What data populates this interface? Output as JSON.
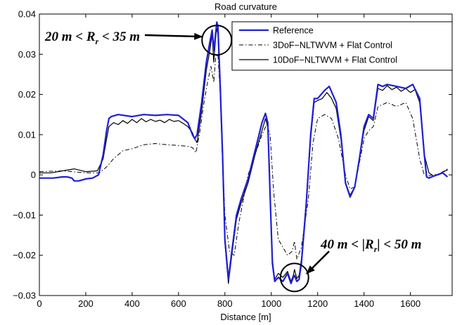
{
  "chart_data": {
    "type": "line",
    "title": "Road curvature",
    "xlabel": "Distance [m]",
    "ylabel": "",
    "xlim": [
      0,
      1780
    ],
    "ylim": [
      -0.03,
      0.04
    ],
    "x_ticks": [
      0,
      200,
      400,
      600,
      800,
      1000,
      1200,
      1400,
      1600
    ],
    "x_tick_labels": [
      "0",
      "200",
      "400",
      "600",
      "800",
      "1000",
      "1200",
      "1400",
      "1600"
    ],
    "y_ticks": [
      -0.03,
      -0.02,
      -0.01,
      0,
      0.01,
      0.02,
      0.03,
      0.04
    ],
    "y_tick_labels": [
      "−0.03",
      "−0.02",
      "−0.01",
      "0",
      "0.01",
      "0.02",
      "0.03",
      "0.04"
    ],
    "grid": false,
    "legend_position": "top-right",
    "series": [
      {
        "name": "Reference",
        "color": "#1f1fd6",
        "style": "solid",
        "x": [
          0,
          60,
          100,
          120,
          140,
          150,
          170,
          200,
          230,
          255,
          275,
          290,
          300,
          310,
          340,
          400,
          450,
          500,
          550,
          600,
          640,
          660,
          670,
          680,
          700,
          720,
          735,
          745,
          752,
          760,
          765,
          770,
          780,
          790,
          800,
          815,
          830,
          850,
          870,
          900,
          930,
          960,
          975,
          985,
          995,
          1005,
          1015,
          1030,
          1050,
          1070,
          1085,
          1095,
          1100,
          1110,
          1120,
          1130,
          1150,
          1170,
          1185,
          1200,
          1230,
          1250,
          1280,
          1300,
          1320,
          1340,
          1360,
          1380,
          1400,
          1420,
          1440,
          1460,
          1480,
          1500,
          1540,
          1580,
          1610,
          1640,
          1660,
          1670,
          1680,
          1700,
          1740,
          1760
        ],
        "y": [
          -0.0008,
          -0.0008,
          -0.0005,
          -0.0005,
          -0.0008,
          -0.0015,
          -0.0015,
          -0.001,
          -0.0008,
          0.0,
          0.005,
          0.011,
          0.014,
          0.0145,
          0.015,
          0.0145,
          0.015,
          0.0148,
          0.015,
          0.0148,
          0.013,
          0.01,
          0.009,
          0.01,
          0.018,
          0.028,
          0.033,
          0.036,
          0.031,
          0.035,
          0.038,
          0.037,
          0.022,
          0.005,
          -0.016,
          -0.026,
          -0.019,
          -0.01,
          -0.006,
          -0.001,
          0.006,
          0.013,
          0.0153,
          0.013,
          -0.005,
          -0.022,
          -0.0265,
          -0.0255,
          -0.0265,
          -0.0245,
          -0.027,
          -0.0255,
          -0.025,
          -0.0265,
          -0.026,
          -0.022,
          -0.008,
          0.01,
          0.019,
          0.019,
          0.021,
          0.022,
          0.018,
          0.01,
          -0.002,
          -0.0055,
          -0.003,
          0.004,
          0.012,
          0.015,
          0.014,
          0.0225,
          0.022,
          0.0225,
          0.022,
          0.0215,
          0.0225,
          0.019,
          0.005,
          -0.0005,
          -0.0008,
          -0.0003,
          0.0005,
          -0.0005
        ]
      },
      {
        "name": "3DoF−NLTWVM + Flat Control",
        "color": "#000000",
        "style": "dashdot",
        "x": [
          0,
          100,
          200,
          260,
          290,
          320,
          360,
          400,
          450,
          500,
          550,
          600,
          640,
          660,
          675,
          690,
          710,
          725,
          740,
          752,
          760,
          770,
          780,
          790,
          800,
          820,
          840,
          860,
          880,
          900,
          930,
          960,
          980,
          995,
          1010,
          1030,
          1050,
          1070,
          1090,
          1100,
          1110,
          1130,
          1160,
          1180,
          1200,
          1230,
          1260,
          1290,
          1320,
          1340,
          1360,
          1380,
          1400,
          1420,
          1440,
          1460,
          1500,
          1540,
          1580,
          1610,
          1640,
          1660,
          1680,
          1700,
          1740,
          1760
        ],
        "y": [
          0.0008,
          0.001,
          0.0005,
          0.0005,
          0.002,
          0.004,
          0.006,
          0.0065,
          0.0075,
          0.0078,
          0.0075,
          0.0073,
          0.0071,
          0.0068,
          0.0055,
          0.01,
          0.018,
          0.023,
          0.027,
          0.023,
          0.029,
          0.03,
          0.02,
          0.006,
          -0.01,
          -0.019,
          -0.02,
          -0.012,
          -0.006,
          0.0,
          0.005,
          0.01,
          0.0125,
          0.01,
          -0.004,
          -0.016,
          -0.018,
          -0.02,
          -0.019,
          -0.0165,
          -0.021,
          -0.018,
          -0.006,
          0.008,
          0.014,
          0.015,
          0.014,
          0.009,
          0.0,
          -0.0035,
          -0.003,
          0.003,
          0.009,
          0.011,
          0.012,
          0.017,
          0.018,
          0.017,
          0.018,
          0.014,
          0.004,
          0.0,
          -0.0002,
          0.0,
          0.0005,
          0.0015
        ]
      },
      {
        "name": "10DoF−NLTWVM + Flat Control",
        "color": "#000000",
        "style": "solid",
        "x": [
          0,
          50,
          100,
          150,
          200,
          250,
          275,
          290,
          300,
          320,
          340,
          360,
          380,
          400,
          420,
          440,
          460,
          480,
          500,
          520,
          540,
          560,
          580,
          600,
          620,
          640,
          660,
          670,
          680,
          700,
          720,
          735,
          745,
          752,
          760,
          765,
          770,
          780,
          790,
          800,
          815,
          830,
          850,
          870,
          900,
          930,
          960,
          975,
          985,
          995,
          1005,
          1015,
          1030,
          1050,
          1070,
          1085,
          1095,
          1100,
          1110,
          1120,
          1130,
          1150,
          1170,
          1185,
          1200,
          1220,
          1240,
          1260,
          1280,
          1300,
          1320,
          1340,
          1360,
          1380,
          1400,
          1420,
          1440,
          1460,
          1480,
          1500,
          1520,
          1540,
          1560,
          1580,
          1600,
          1620,
          1640,
          1660,
          1680,
          1700,
          1720,
          1740,
          1760
        ],
        "y": [
          0.0005,
          0.0005,
          0.001,
          0.0015,
          0.0008,
          0.001,
          0.004,
          0.009,
          0.012,
          0.013,
          0.0125,
          0.0135,
          0.0128,
          0.0138,
          0.013,
          0.014,
          0.0132,
          0.0138,
          0.0133,
          0.0136,
          0.013,
          0.0138,
          0.0133,
          0.0135,
          0.0128,
          0.012,
          0.0105,
          0.009,
          0.008,
          0.016,
          0.026,
          0.031,
          0.035,
          0.028,
          0.034,
          0.0365,
          0.035,
          0.02,
          0.003,
          -0.017,
          -0.027,
          -0.02,
          -0.011,
          -0.007,
          -0.002,
          0.005,
          0.011,
          0.014,
          0.012,
          -0.006,
          -0.021,
          -0.026,
          -0.0245,
          -0.0255,
          -0.024,
          -0.0265,
          -0.025,
          -0.0235,
          -0.0258,
          -0.025,
          -0.021,
          -0.007,
          0.009,
          0.018,
          0.0185,
          0.019,
          0.0205,
          0.019,
          0.0165,
          0.009,
          -0.002,
          -0.005,
          -0.003,
          0.004,
          0.011,
          0.0145,
          0.0135,
          0.0215,
          0.021,
          0.0222,
          0.0212,
          0.0218,
          0.0208,
          0.0215,
          0.0205,
          0.0212,
          0.018,
          0.005,
          0.0005,
          -0.0003,
          0.0,
          0.0008,
          0.0012
        ]
      }
    ],
    "annotations": [
      {
        "text_main": "20 m < R",
        "text_sub": "r",
        "text_tail": " < 35 m",
        "circle_center": [
          765,
          0.0335
        ],
        "arrow_to": [
          730,
          0.0355
        ]
      },
      {
        "text_main": "40 m < |R",
        "text_sub": "r",
        "text_tail": "| < 50 m",
        "circle_center": [
          1100,
          -0.0255
        ],
        "arrow_to": [
          1135,
          -0.0245
        ]
      }
    ]
  }
}
